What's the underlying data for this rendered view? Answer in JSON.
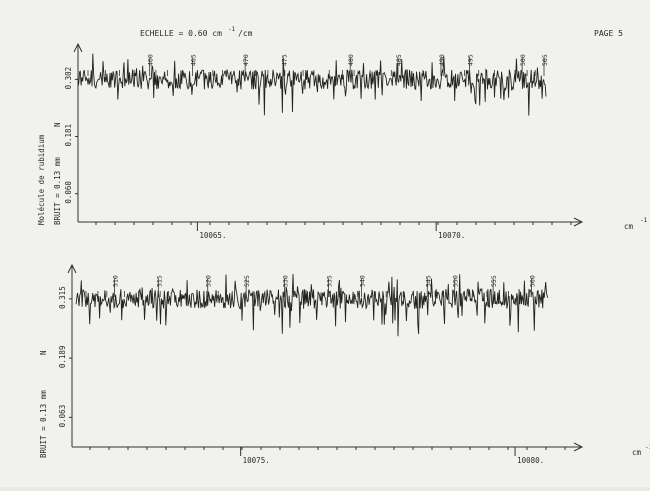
{
  "header": {
    "scale_label": "ECHELLE = 0.60 cm",
    "scale_superscript": "-1",
    "scale_unit": "/cm",
    "page": "PAGE 5"
  },
  "chart_data": [
    {
      "type": "line",
      "title": "",
      "xlabel": "cm",
      "xlabel_superscript": "-1",
      "ylabel_lines": [
        "Molécule de rubidium",
        "BRUIT = 0.13 mm"
      ],
      "noise_label": "N",
      "y_ticks": [
        "0.302",
        "0.181",
        "0.060"
      ],
      "y_tick_values": [
        0.302,
        0.181,
        0.06
      ],
      "ylim": [
        0.0,
        0.36
      ],
      "x_ticks": [
        "10065.",
        "10070."
      ],
      "x_tick_values": [
        10065,
        10070
      ],
      "xlim": [
        10062.5,
        10072.3
      ],
      "line_indices": [
        "460",
        "465",
        "470",
        "475",
        "480",
        "485",
        "490",
        "495",
        "500",
        "505"
      ],
      "line_index_positions": [
        10064.0,
        10064.9,
        10066.0,
        10066.8,
        10068.2,
        10069.2,
        10070.1,
        10070.7,
        10071.8,
        10072.8
      ],
      "series": [
        {
          "baseline": 0.302,
          "noise_amplitude": 0.03,
          "x_start": 10062.5,
          "x_end": 10072.3
        }
      ]
    },
    {
      "type": "line",
      "title": "",
      "xlabel": "cm",
      "xlabel_superscript": "-1",
      "ylabel_lines": [
        "BRUIT = 0.13 mm"
      ],
      "noise_label": "N",
      "y_ticks": [
        "0.315",
        "0.189",
        "0.063"
      ],
      "y_tick_values": [
        0.315,
        0.189,
        0.063
      ],
      "ylim": [
        0.0,
        0.37
      ],
      "x_ticks": [
        "10075.",
        "10080."
      ],
      "x_tick_values": [
        10075,
        10080
      ],
      "xlim": [
        10072.0,
        10080.6
      ],
      "line_indices": [
        "510",
        "515",
        "520",
        "525",
        "530",
        "535",
        "540",
        "545",
        "550",
        "555",
        "560"
      ],
      "line_index_positions": [
        10072.7,
        10073.5,
        10074.4,
        10075.1,
        10075.8,
        10076.6,
        10077.2,
        10078.4,
        10078.9,
        10079.6,
        10080.3
      ],
      "series": [
        {
          "baseline": 0.315,
          "noise_amplitude": 0.03,
          "x_start": 10072.0,
          "x_end": 10080.6
        }
      ]
    }
  ]
}
